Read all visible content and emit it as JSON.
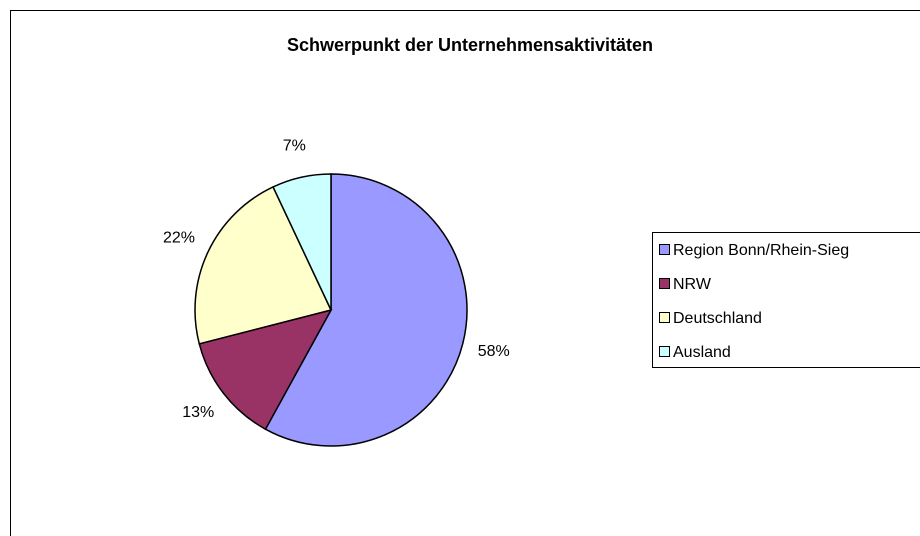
{
  "chart_data": {
    "type": "pie",
    "title": "Schwerpunkt der Unternehmensaktivitäten",
    "categories": [
      "Region Bonn/Rhein-Sieg",
      "NRW",
      "Deutschland",
      "Ausland"
    ],
    "values": [
      58,
      13,
      22,
      7
    ],
    "value_labels": [
      "58%",
      "13%",
      "22%",
      "7%"
    ],
    "colors": [
      "#9999ff",
      "#993366",
      "#ffffcc",
      "#ccffff"
    ],
    "legend": "right"
  }
}
